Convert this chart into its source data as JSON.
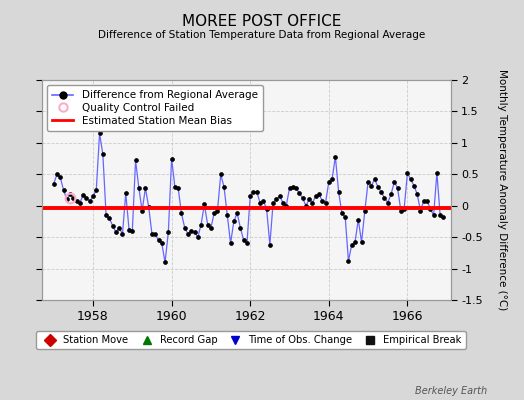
{
  "title": "MOREE POST OFFICE",
  "subtitle": "Difference of Station Temperature Data from Regional Average",
  "ylabel": "Monthly Temperature Anomaly Difference (°C)",
  "bias_value": -0.03,
  "ylim": [
    -1.5,
    2.0
  ],
  "xlim": [
    1956.7,
    1967.1
  ],
  "xticks": [
    1958,
    1960,
    1962,
    1964,
    1966
  ],
  "yticks_right": [
    -1.5,
    -1.0,
    -0.5,
    0.0,
    0.5,
    1.0,
    1.5,
    2.0
  ],
  "ytick_labels_right": [
    "-1.5",
    "-1",
    "-0.5",
    "0",
    "0.5",
    "1",
    "1.5",
    "2"
  ],
  "background_color": "#d8d8d8",
  "plot_bg_color": "#f5f5f5",
  "line_color": "#6666ff",
  "marker_color": "#000000",
  "bias_color": "#ff0000",
  "watermark": "Berkeley Earth",
  "data": [
    [
      1957.0,
      0.35
    ],
    [
      1957.083,
      0.5
    ],
    [
      1957.167,
      0.45
    ],
    [
      1957.25,
      0.25
    ],
    [
      1957.333,
      0.1
    ],
    [
      1957.417,
      0.18
    ],
    [
      1957.5,
      0.12
    ],
    [
      1957.583,
      0.08
    ],
    [
      1957.667,
      0.05
    ],
    [
      1957.75,
      0.17
    ],
    [
      1957.833,
      0.13
    ],
    [
      1957.917,
      0.07
    ],
    [
      1958.0,
      0.15
    ],
    [
      1958.083,
      0.25
    ],
    [
      1958.167,
      1.15
    ],
    [
      1958.25,
      0.82
    ],
    [
      1958.333,
      -0.15
    ],
    [
      1958.417,
      -0.2
    ],
    [
      1958.5,
      -0.32
    ],
    [
      1958.583,
      -0.42
    ],
    [
      1958.667,
      -0.35
    ],
    [
      1958.75,
      -0.45
    ],
    [
      1958.833,
      0.2
    ],
    [
      1958.917,
      -0.38
    ],
    [
      1959.0,
      -0.4
    ],
    [
      1959.083,
      0.72
    ],
    [
      1959.167,
      0.28
    ],
    [
      1959.25,
      -0.08
    ],
    [
      1959.333,
      0.28
    ],
    [
      1959.417,
      -0.02
    ],
    [
      1959.5,
      -0.45
    ],
    [
      1959.583,
      -0.45
    ],
    [
      1959.667,
      -0.55
    ],
    [
      1959.75,
      -0.6
    ],
    [
      1959.833,
      -0.9
    ],
    [
      1959.917,
      -0.42
    ],
    [
      1960.0,
      0.75
    ],
    [
      1960.083,
      0.3
    ],
    [
      1960.167,
      0.28
    ],
    [
      1960.25,
      -0.12
    ],
    [
      1960.333,
      -0.35
    ],
    [
      1960.417,
      -0.45
    ],
    [
      1960.5,
      -0.4
    ],
    [
      1960.583,
      -0.42
    ],
    [
      1960.667,
      -0.5
    ],
    [
      1960.75,
      -0.3
    ],
    [
      1960.833,
      0.02
    ],
    [
      1960.917,
      -0.3
    ],
    [
      1961.0,
      -0.35
    ],
    [
      1961.083,
      -0.12
    ],
    [
      1961.167,
      -0.08
    ],
    [
      1961.25,
      0.5
    ],
    [
      1961.333,
      0.3
    ],
    [
      1961.417,
      -0.15
    ],
    [
      1961.5,
      -0.6
    ],
    [
      1961.583,
      -0.25
    ],
    [
      1961.667,
      -0.12
    ],
    [
      1961.75,
      -0.35
    ],
    [
      1961.833,
      -0.55
    ],
    [
      1961.917,
      -0.6
    ],
    [
      1962.0,
      0.15
    ],
    [
      1962.083,
      0.22
    ],
    [
      1962.167,
      0.22
    ],
    [
      1962.25,
      0.05
    ],
    [
      1962.333,
      0.08
    ],
    [
      1962.417,
      -0.05
    ],
    [
      1962.5,
      -0.62
    ],
    [
      1962.583,
      0.05
    ],
    [
      1962.667,
      0.1
    ],
    [
      1962.75,
      0.15
    ],
    [
      1962.833,
      0.05
    ],
    [
      1962.917,
      0.0
    ],
    [
      1963.0,
      0.28
    ],
    [
      1963.083,
      0.3
    ],
    [
      1963.167,
      0.28
    ],
    [
      1963.25,
      0.2
    ],
    [
      1963.333,
      0.12
    ],
    [
      1963.417,
      0.0
    ],
    [
      1963.5,
      0.1
    ],
    [
      1963.583,
      0.05
    ],
    [
      1963.667,
      0.15
    ],
    [
      1963.75,
      0.18
    ],
    [
      1963.833,
      0.08
    ],
    [
      1963.917,
      0.05
    ],
    [
      1964.0,
      0.38
    ],
    [
      1964.083,
      0.42
    ],
    [
      1964.167,
      0.78
    ],
    [
      1964.25,
      0.22
    ],
    [
      1964.333,
      -0.12
    ],
    [
      1964.417,
      -0.18
    ],
    [
      1964.5,
      -0.88
    ],
    [
      1964.583,
      -0.62
    ],
    [
      1964.667,
      -0.58
    ],
    [
      1964.75,
      -0.22
    ],
    [
      1964.833,
      -0.58
    ],
    [
      1964.917,
      -0.08
    ],
    [
      1965.0,
      0.38
    ],
    [
      1965.083,
      0.32
    ],
    [
      1965.167,
      0.42
    ],
    [
      1965.25,
      0.3
    ],
    [
      1965.333,
      0.22
    ],
    [
      1965.417,
      0.12
    ],
    [
      1965.5,
      0.05
    ],
    [
      1965.583,
      0.18
    ],
    [
      1965.667,
      0.38
    ],
    [
      1965.75,
      0.28
    ],
    [
      1965.833,
      -0.08
    ],
    [
      1965.917,
      -0.05
    ],
    [
      1966.0,
      0.52
    ],
    [
      1966.083,
      0.42
    ],
    [
      1966.167,
      0.32
    ],
    [
      1966.25,
      0.18
    ],
    [
      1966.333,
      -0.08
    ],
    [
      1966.417,
      0.08
    ],
    [
      1966.5,
      0.08
    ],
    [
      1966.583,
      -0.05
    ],
    [
      1966.667,
      -0.15
    ],
    [
      1966.75,
      0.52
    ],
    [
      1966.833,
      -0.15
    ],
    [
      1966.917,
      -0.18
    ]
  ],
  "qc_failed": [
    [
      1957.417,
      0.12
    ]
  ]
}
